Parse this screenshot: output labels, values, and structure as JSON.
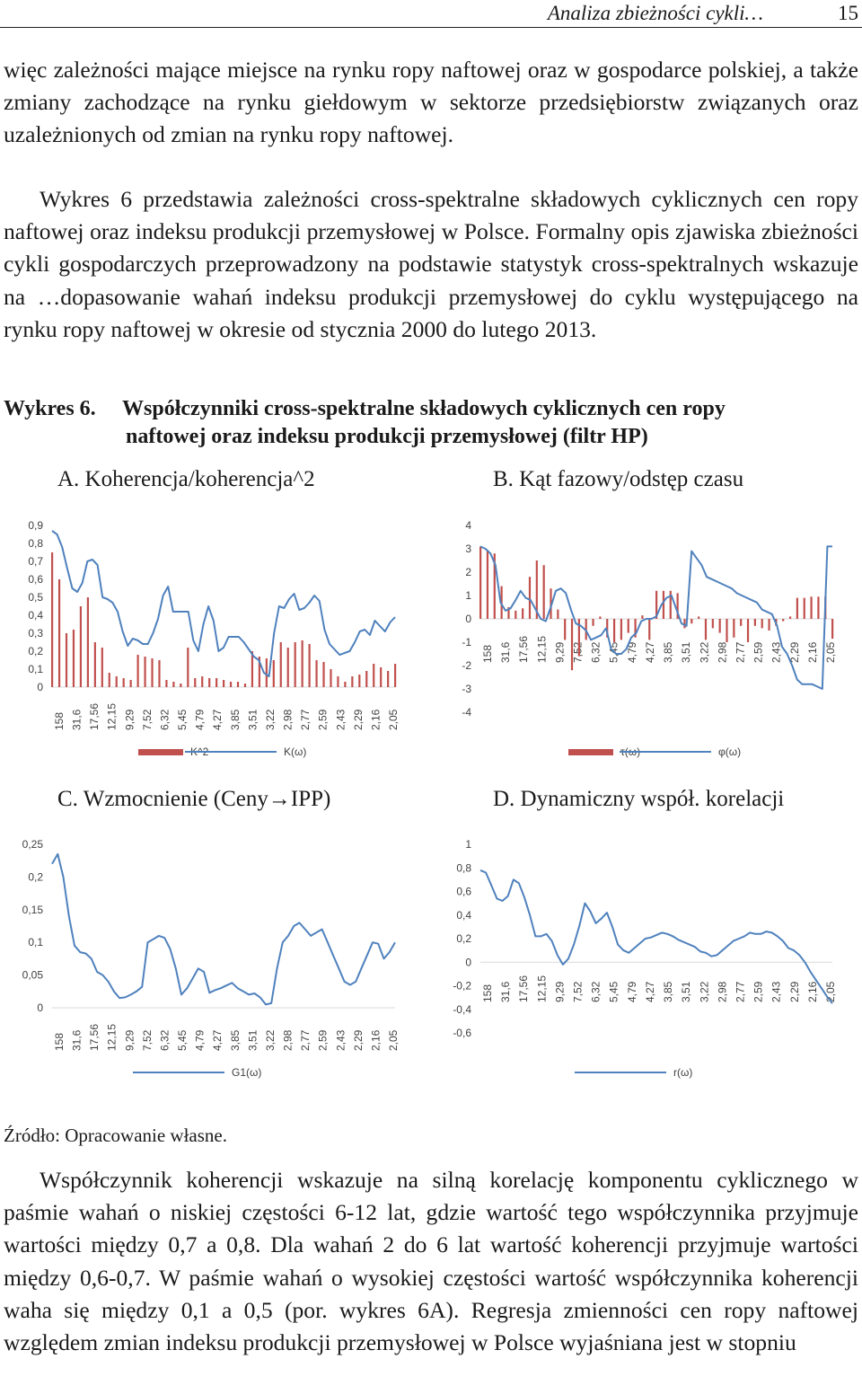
{
  "header": {
    "running_title": "Analiza zbieżności cykli…",
    "page_number": "15"
  },
  "text": {
    "p1": "więc zależności mające miejsce na rynku ropy naftowej oraz w gospodarce polskiej, a także zmiany zachodzące na rynku giełdowym w sektorze przedsiębiorstw związanych oraz uzależnionych od zmian na rynku ropy naftowej.",
    "p2": "Wykres 6 przedstawia zależności cross-spektralne składowych cyklicznych cen ropy naftowej oraz indeksu produkcji przemysłowej w Polsce. Formalny opis zjawiska zbieżności cykli gospodarczych przeprowadzony na podstawie statystyk cross-spektralnych wskazuje na …dopasowanie wahań indeksu produkcji przemysłowej do cyklu występującego na rynku ropy naftowej w okresie od stycznia 2000 do lutego 2013.",
    "p3": "Współczynnik koherencji wskazuje na silną korelację komponentu cyklicznego w paśmie wahań o niskiej częstości 6-12 lat, gdzie wartość tego współczynnika przyjmuje wartości między 0,7 a 0,8. Dla wahań 2 do 6 lat wartość koherencji przyjmuje wartości między 0,6-0,7. W paśmie wahań o wysokiej częstości wartość współczynnika koherencji waha się między 0,1 a 0,5 (por. wykres 6A). Regresja zmienności cen ropy naftowej względem zmian indeksu produkcji przemysłowej w Polsce wyjaśniana jest w stopniu"
  },
  "figure": {
    "label": "Wykres 6.",
    "title_line1": "Współczynniki cross-spektralne składowych cyklicznych cen ropy",
    "title_line2": "naftowej oraz indeksu produkcji przemysłowej (filtr HP)",
    "source": "Źródło: Opracowanie własne."
  },
  "subtitles": {
    "a": "A. Koherencja/koherencja^2",
    "b": "B. Kąt fazowy/odstęp czasu",
    "c_prefix": "C. Wzmocnienie (Ceny",
    "c_arrow": "→",
    "c_suffix": "IPP)",
    "d": "D. Dynamiczny współ. korelacji"
  },
  "chart_data": [
    {
      "id": "A",
      "type": "bar+line",
      "x_ticks": [
        "158",
        "31,6",
        "17,56",
        "12,15",
        "9,29",
        "7,52",
        "6,32",
        "5,45",
        "4,79",
        "4,27",
        "3,85",
        "3,51",
        "3,22",
        "2,98",
        "2,77",
        "2,59",
        "2,43",
        "2,29",
        "2,16",
        "2,05"
      ],
      "ylim": [
        0,
        0.9
      ],
      "y_ticks": [
        "0",
        "0,1",
        "0,2",
        "0,3",
        "0,4",
        "0,5",
        "0,6",
        "0,7",
        "0,8",
        "0,9"
      ],
      "series": [
        {
          "name": "K^2",
          "kind": "bar",
          "color": "#c0504d",
          "values": [
            0.75,
            0.6,
            0.3,
            0.32,
            0.45,
            0.5,
            0.25,
            0.22,
            0.08,
            0.06,
            0.05,
            0.04,
            0.18,
            0.17,
            0.16,
            0.15,
            0.04,
            0.03,
            0.02,
            0.22,
            0.05,
            0.06,
            0.05,
            0.05,
            0.04,
            0.03,
            0.03,
            0.02,
            0.2,
            0.17,
            0.16,
            0.15,
            0.25,
            0.22,
            0.25,
            0.26,
            0.24,
            0.15,
            0.14,
            0.1,
            0.06,
            0.03,
            0.06,
            0.07,
            0.09,
            0.13,
            0.11,
            0.09,
            0.13
          ]
        },
        {
          "name": "K(ω)",
          "kind": "line",
          "color": "#4f81bd",
          "values": [
            0.87,
            0.85,
            0.78,
            0.66,
            0.55,
            0.53,
            0.58,
            0.7,
            0.71,
            0.68,
            0.5,
            0.49,
            0.47,
            0.42,
            0.31,
            0.23,
            0.27,
            0.26,
            0.24,
            0.24,
            0.3,
            0.38,
            0.51,
            0.56,
            0.42,
            0.42,
            0.42,
            0.42,
            0.26,
            0.2,
            0.35,
            0.45,
            0.37,
            0.2,
            0.22,
            0.28,
            0.28,
            0.28,
            0.25,
            0.21,
            0.17,
            0.15,
            0.08,
            0.06,
            0.3,
            0.45,
            0.44,
            0.49,
            0.52,
            0.43,
            0.44,
            0.47,
            0.51,
            0.48,
            0.32,
            0.24,
            0.21,
            0.18,
            0.19,
            0.2,
            0.25,
            0.31,
            0.32,
            0.29,
            0.37,
            0.34,
            0.31,
            0.36,
            0.39
          ]
        }
      ]
    },
    {
      "id": "B",
      "type": "bar+line",
      "x_ticks": [
        "158",
        "31,6",
        "17,56",
        "12,15",
        "9,29",
        "7,52",
        "6,32",
        "5,45",
        "4,79",
        "4,27",
        "3,85",
        "3,51",
        "3,22",
        "2,98",
        "2,77",
        "2,59",
        "2,43",
        "2,29",
        "2,16",
        "2,05"
      ],
      "ylim": [
        -4,
        4
      ],
      "y_ticks": [
        "-4",
        "-3",
        "-2",
        "-1",
        "0",
        "1",
        "2",
        "3",
        "4"
      ],
      "series": [
        {
          "name": "τ(ω)",
          "kind": "bar",
          "color": "#c0504d",
          "values": [
            3.1,
            2.95,
            2.8,
            1.4,
            0.5,
            0.35,
            0.45,
            1.8,
            2.5,
            2.3,
            1.3,
            0.4,
            -0.9,
            -2.2,
            -1.6,
            -0.9,
            -0.3,
            0.1,
            -0.8,
            -1.0,
            -0.9,
            -0.6,
            -0.8,
            0.15,
            -0.9,
            1.2,
            1.2,
            1.2,
            1.1,
            -0.4,
            -0.2,
            0.1,
            -0.9,
            -0.4,
            -0.6,
            -1.0,
            -0.8,
            -0.3,
            -1.0,
            -0.3,
            -0.4,
            -0.5,
            -0.3,
            -0.1,
            0.1,
            0.9,
            0.9,
            0.95,
            0.95,
            0.95,
            -0.85
          ]
        },
        {
          "name": "φ(ω)",
          "kind": "line",
          "color": "#4f81bd",
          "values": [
            3.1,
            3.0,
            2.8,
            2.3,
            0.7,
            0.35,
            0.45,
            0.8,
            1.2,
            0.9,
            0.8,
            0.4,
            0.0,
            -0.1,
            0.5,
            1.2,
            1.3,
            1.1,
            0.4,
            -0.2,
            -0.3,
            -0.5,
            -0.9,
            -0.8,
            -0.7,
            -0.4,
            -1.3,
            -1.5,
            -1.5,
            -1.3,
            -0.8,
            -0.6,
            -0.1,
            0.0,
            0.0,
            0.1,
            0.6,
            0.9,
            1.0,
            0.4,
            -0.2,
            -0.3,
            2.9,
            2.6,
            2.3,
            1.8,
            1.7,
            1.6,
            1.5,
            1.4,
            1.3,
            1.1,
            1.0,
            0.9,
            0.8,
            0.7,
            0.4,
            0.3,
            0.2,
            -0.3,
            -1.2,
            -1.5,
            -2.0,
            -2.6,
            -2.8,
            -2.8,
            -2.8,
            -2.9,
            -3.0,
            3.1,
            3.1
          ]
        }
      ]
    },
    {
      "id": "C",
      "type": "line",
      "x_ticks": [
        "158",
        "31,6",
        "17,56",
        "12,15",
        "9,29",
        "7,52",
        "6,32",
        "5,45",
        "4,79",
        "4,27",
        "3,85",
        "3,51",
        "3,22",
        "2,98",
        "2,77",
        "2,59",
        "2,43",
        "2,29",
        "2,16",
        "2,05"
      ],
      "ylim": [
        0,
        0.25
      ],
      "y_ticks": [
        "0",
        "0,05",
        "0,1",
        "0,15",
        "0,2",
        "0,25"
      ],
      "series": [
        {
          "name": "G1(ω)",
          "kind": "line",
          "color": "#4f81bd",
          "values": [
            0.22,
            0.235,
            0.2,
            0.14,
            0.095,
            0.085,
            0.083,
            0.075,
            0.055,
            0.05,
            0.04,
            0.025,
            0.015,
            0.016,
            0.02,
            0.025,
            0.032,
            0.1,
            0.105,
            0.11,
            0.107,
            0.09,
            0.06,
            0.02,
            0.03,
            0.045,
            0.06,
            0.055,
            0.023,
            0.027,
            0.03,
            0.034,
            0.038,
            0.03,
            0.025,
            0.02,
            0.022,
            0.016,
            0.005,
            0.007,
            0.06,
            0.1,
            0.11,
            0.125,
            0.13,
            0.12,
            0.11,
            0.115,
            0.12,
            0.1,
            0.08,
            0.06,
            0.04,
            0.035,
            0.04,
            0.06,
            0.08,
            0.1,
            0.098,
            0.075,
            0.085,
            0.1
          ]
        }
      ]
    },
    {
      "id": "D",
      "type": "line",
      "x_ticks": [
        "158",
        "31,6",
        "17,56",
        "12,15",
        "9,29",
        "7,52",
        "6,32",
        "5,45",
        "4,79",
        "4,27",
        "3,85",
        "3,51",
        "3,22",
        "2,98",
        "2,77",
        "2,59",
        "2,43",
        "2,29",
        "2,16",
        "2,05"
      ],
      "ylim": [
        -0.6,
        1
      ],
      "y_ticks": [
        "-0,6",
        "-0,4",
        "-0,2",
        "0",
        "0,2",
        "0,4",
        "0,6",
        "0,8",
        "1"
      ],
      "series": [
        {
          "name": "r(ω)",
          "kind": "line",
          "color": "#4f81bd",
          "values": [
            0.78,
            0.76,
            0.65,
            0.54,
            0.52,
            0.56,
            0.7,
            0.67,
            0.55,
            0.4,
            0.22,
            0.22,
            0.24,
            0.18,
            0.06,
            -0.02,
            0.03,
            0.15,
            0.31,
            0.5,
            0.43,
            0.33,
            0.37,
            0.42,
            0.3,
            0.15,
            0.1,
            0.08,
            0.12,
            0.16,
            0.2,
            0.21,
            0.23,
            0.25,
            0.24,
            0.22,
            0.19,
            0.17,
            0.15,
            0.13,
            0.09,
            0.08,
            0.05,
            0.06,
            0.1,
            0.14,
            0.18,
            0.2,
            0.22,
            0.25,
            0.24,
            0.24,
            0.26,
            0.25,
            0.22,
            0.18,
            0.12,
            0.1,
            0.06,
            0.0,
            -0.08,
            -0.15,
            -0.22,
            -0.29,
            -0.35
          ]
        }
      ]
    }
  ]
}
